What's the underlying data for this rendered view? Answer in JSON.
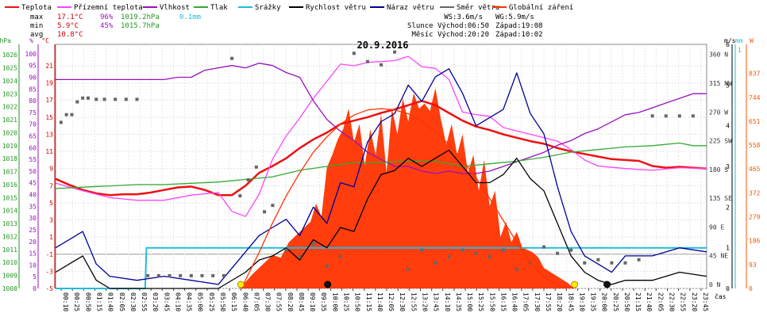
{
  "chart_data": {
    "type": "line",
    "title": "20.9.2016",
    "legend": [
      {
        "name": "Teplota",
        "color": "#ee1111"
      },
      {
        "name": "Přízemní teplota",
        "color": "#ff44ff"
      },
      {
        "name": "Vlhkost",
        "color": "#9911bb"
      },
      {
        "name": "Tlak",
        "color": "#33aa33"
      },
      {
        "name": "Srážky",
        "color": "#22bbdd"
      },
      {
        "name": "Rychlost větru",
        "color": "#000000"
      },
      {
        "name": "Náraz větru",
        "color": "#000099"
      },
      {
        "name": "Směr větru",
        "color": "#666666"
      },
      {
        "name": "Globální záření",
        "color": "#ff3300"
      }
    ],
    "stats": {
      "max": {
        "label": "max",
        "temp": "17.1°C",
        "hum": "96%",
        "press": "1019.2hPa",
        "rain": "0.1mm"
      },
      "min": {
        "label": "min",
        "temp": "5.9°C",
        "hum": "45%",
        "press": "1015.7hPa"
      },
      "avg": {
        "label": "avg",
        "temp": "10.8°C"
      }
    },
    "info": {
      "ws": "WS:3.6m/s",
      "wg": "WG:5.9m/s",
      "sun": "Slunce Východ:06:50",
      "sun_set": "Západ:19:08",
      "moon": "Měsíc Východ:20:20",
      "moon_set": "Západ:10:02"
    },
    "axes": {
      "hpa": {
        "label": "hPa",
        "ticks": [
          1008,
          1009,
          1010,
          1011,
          1012,
          1013,
          1014,
          1015,
          1016,
          1017,
          1018,
          1019,
          1020,
          1021,
          1022,
          1023,
          1024,
          1025,
          1026
        ],
        "range": [
          1008,
          1026.8
        ]
      },
      "pct": {
        "label": "%",
        "ticks": [
          0,
          5,
          10,
          15,
          20,
          25,
          30,
          35,
          40,
          45,
          50,
          55,
          60,
          65,
          70,
          75,
          80,
          85,
          90,
          95,
          100
        ],
        "range": [
          0,
          104
        ]
      },
      "temp": {
        "label": "°C",
        "ticks": [
          -5,
          -3,
          -1,
          1,
          3,
          5,
          7,
          9,
          11,
          13,
          15,
          17,
          19,
          21
        ],
        "range": [
          -5,
          23.5
        ]
      },
      "dir": {
        "label": "m/s",
        "ticks": [
          "0 N",
          "45 NE",
          "90 E",
          "135 SE",
          "180 S",
          "225 SW",
          "270 W",
          "315 NW",
          "360 N"
        ],
        "range": [
          0,
          382
        ]
      },
      "wind": {
        "label": "mm",
        "ticks": [
          0,
          1,
          2,
          3,
          4,
          5,
          6
        ],
        "top_label": "1",
        "range": [
          0,
          6
        ]
      },
      "rad": {
        "label": "W",
        "ticks": [
          0,
          93,
          186,
          279,
          372,
          465,
          558,
          651,
          744,
          837
        ],
        "range": [
          0,
          950
        ]
      }
    },
    "x_labels": [
      "00:10",
      "00:25",
      "00:50",
      "01:15",
      "01:40",
      "02:05",
      "02:30",
      "02:55",
      "03:20",
      "03:45",
      "04:10",
      "04:35",
      "05:00",
      "05:25",
      "05:50",
      "06:15",
      "06:40",
      "07:05",
      "07:30",
      "07:55",
      "08:20",
      "08:45",
      "09:10",
      "09:35",
      "10:00",
      "10:25",
      "10:50",
      "11:15",
      "11:40",
      "12:05",
      "12:30",
      "12:55",
      "13:20",
      "13:45",
      "14:10",
      "14:35",
      "15:00",
      "15:25",
      "15:50",
      "16:15",
      "16:40",
      "17:05",
      "17:30",
      "17:55",
      "18:20",
      "18:45",
      "19:10",
      "19:35",
      "20:00",
      "20:25",
      "20:50",
      "21:15",
      "21:40",
      "22:05",
      "22:30",
      "22:55",
      "23:20",
      "23:45"
    ],
    "x_unit": "čas",
    "x_range_hours": [
      0.0,
      24.0
    ],
    "series": [
      {
        "name": "Teplota",
        "axis": "temp",
        "color": "#ee1111",
        "x": [
          0,
          0.5,
          1,
          1.5,
          2,
          2.5,
          3,
          3.5,
          4,
          4.5,
          5,
          5.5,
          6,
          6.5,
          7,
          7.5,
          8,
          8.5,
          9,
          9.5,
          10,
          10.5,
          11,
          11.5,
          12,
          12.5,
          13,
          13.5,
          14,
          14.5,
          15,
          15.5,
          16,
          16.5,
          17,
          17.5,
          18,
          18.5,
          19,
          19.5,
          20,
          20.5,
          21,
          21.5,
          22,
          22.5,
          23,
          23.5,
          24
        ],
        "values": [
          7.8,
          7.1,
          6.5,
          6.1,
          5.9,
          6.0,
          6.0,
          6.2,
          6.5,
          6.8,
          6.9,
          6.5,
          5.9,
          5.9,
          7.0,
          8.5,
          9.3,
          10.2,
          11.4,
          12.4,
          13.2,
          14.2,
          14.6,
          15.0,
          15.5,
          15.9,
          16.4,
          16.9,
          16.4,
          15.5,
          14.6,
          13.9,
          13.5,
          13.0,
          12.6,
          12.2,
          11.9,
          11.4,
          11.0,
          10.7,
          10.4,
          10.1,
          10.0,
          9.9,
          9.3,
          9.1,
          9.2,
          9.1,
          9.0
        ]
      },
      {
        "name": "Přízemní teplota",
        "axis": "temp",
        "color": "#ff44ff",
        "x": [
          0,
          1,
          2,
          3,
          4,
          5,
          6,
          6.5,
          7,
          7.5,
          8,
          8.5,
          9,
          9.5,
          10,
          10.5,
          11,
          11.5,
          12,
          12.5,
          13,
          13.5,
          14,
          14.5,
          15,
          15.5,
          16,
          16.5,
          17,
          17.5,
          18,
          18.5,
          19,
          19.5,
          20,
          21,
          22,
          23,
          24
        ],
        "values": [
          7.3,
          6.4,
          5.6,
          5.3,
          5.3,
          5.9,
          6.2,
          4.0,
          3.4,
          6.0,
          10.1,
          12.8,
          14.9,
          17.2,
          19.2,
          21.2,
          21.0,
          21.4,
          21.5,
          21.6,
          22.1,
          20.9,
          20.7,
          19.4,
          15.6,
          15.3,
          15.1,
          13.8,
          13.4,
          13.0,
          12.6,
          12.2,
          11.2,
          10.0,
          9.3,
          9.0,
          8.8,
          9.1,
          9.0
        ]
      },
      {
        "name": "Vlhkost",
        "axis": "pct",
        "color": "#9911bb",
        "x": [
          0,
          1,
          2,
          3,
          3.5,
          4,
          4.5,
          5,
          5.5,
          6,
          6.5,
          7,
          7.5,
          8,
          8.5,
          9,
          9.5,
          10,
          10.5,
          11,
          11.5,
          12,
          12.5,
          13,
          13.5,
          14,
          14.5,
          15,
          15.5,
          16,
          16.5,
          17,
          17.5,
          18,
          18.5,
          19,
          19.5,
          20,
          20.5,
          21,
          21.5,
          22,
          22.5,
          23,
          23.5,
          24
        ],
        "values": [
          89,
          89,
          89,
          89,
          89,
          89,
          90,
          90,
          93,
          94,
          95,
          94,
          96,
          95,
          92,
          90,
          80,
          72,
          67,
          63,
          58,
          55,
          52,
          52,
          50,
          49,
          50,
          49,
          49,
          50,
          52,
          54,
          56,
          58,
          61,
          63,
          66,
          68,
          71,
          74,
          75,
          77,
          79,
          81,
          83,
          83
        ]
      },
      {
        "name": "Tlak",
        "axis": "hpa",
        "color": "#33aa33",
        "x": [
          0,
          1,
          2,
          3,
          4,
          5,
          6,
          7,
          8,
          9,
          10,
          11,
          12,
          13,
          14,
          15,
          16,
          17,
          18,
          19,
          20,
          21,
          22,
          23,
          23.5,
          24
        ],
        "values": [
          1015.7,
          1015.8,
          1015.9,
          1016.0,
          1016.0,
          1016.1,
          1016.2,
          1016.4,
          1016.6,
          1017.1,
          1017.4,
          1017.7,
          1017.7,
          1017.8,
          1017.8,
          1017.4,
          1017.6,
          1017.8,
          1018.1,
          1018.5,
          1018.7,
          1018.9,
          1019.0,
          1019.2,
          1019.0,
          1019.0
        ]
      },
      {
        "name": "Srážky",
        "axis": "wind",
        "color": "#22bbdd",
        "x": [
          0,
          3.3,
          3.35,
          24
        ],
        "values": [
          0,
          0,
          1,
          1
        ]
      },
      {
        "name": "Rychlost větru",
        "axis": "wind",
        "color": "#000000",
        "x": [
          0,
          0.5,
          1,
          1.5,
          2,
          3,
          4,
          5,
          6,
          7,
          7.5,
          8,
          8.5,
          9,
          9.5,
          10,
          10.5,
          11,
          11.5,
          12,
          12.5,
          13,
          13.5,
          14,
          14.5,
          15,
          15.5,
          16,
          16.5,
          17,
          17.5,
          18,
          18.5,
          19,
          19.5,
          20,
          20.5,
          21,
          22,
          23,
          24
        ],
        "values": [
          0.4,
          0.6,
          0.8,
          0.2,
          0,
          0,
          0,
          0,
          0,
          0.4,
          0.7,
          0.8,
          1.0,
          0.7,
          1.2,
          1.0,
          1.5,
          1.4,
          2.2,
          2.8,
          2.9,
          3.2,
          3.0,
          3.2,
          3.4,
          3.0,
          2.6,
          2.6,
          2.8,
          3.2,
          2.7,
          2.4,
          1.6,
          0.8,
          0.4,
          0.2,
          0.1,
          0.2,
          0.2,
          0.4,
          0.3
        ]
      },
      {
        "name": "Náraz větru",
        "axis": "wind",
        "color": "#000099",
        "x": [
          0,
          0.5,
          1,
          1.5,
          2,
          3,
          4,
          5,
          6,
          7,
          7.5,
          8,
          8.5,
          9,
          9.5,
          10,
          10.5,
          11,
          11.5,
          12,
          12.5,
          13,
          13.5,
          14,
          14.5,
          15,
          15.5,
          16,
          16.5,
          17,
          17.5,
          18,
          18.5,
          19,
          19.5,
          20,
          20.5,
          21,
          22,
          23,
          24
        ],
        "values": [
          1.0,
          1.2,
          1.4,
          0.6,
          0.3,
          0.2,
          0.3,
          0.2,
          0.1,
          0.9,
          1.3,
          1.5,
          1.7,
          1.3,
          2.0,
          1.6,
          2.6,
          2.5,
          3.6,
          4.1,
          4.3,
          5.0,
          4.6,
          5.2,
          5.4,
          4.8,
          4.0,
          4.2,
          4.4,
          5.3,
          4.3,
          3.8,
          2.5,
          1.4,
          0.8,
          0.6,
          0.4,
          0.8,
          0.8,
          1.0,
          0.9
        ]
      },
      {
        "name": "Směr větru",
        "axis": "dir",
        "type": "scatter",
        "color": "#666666",
        "x": [
          0.2,
          0.4,
          0.6,
          0.8,
          1.0,
          1.2,
          1.5,
          1.8,
          2.2,
          2.6,
          3.0,
          3.4,
          3.8,
          4.2,
          4.6,
          5.0,
          5.4,
          5.8,
          6.2,
          6.5,
          6.8,
          7.1,
          7.4,
          7.7,
          8.0,
          8.5,
          9.0,
          9.5,
          10.0,
          10.5,
          11.0,
          11.5,
          12.0,
          12.5,
          13.0,
          13.5,
          14.0,
          14.5,
          15.0,
          15.5,
          16.0,
          16.5,
          17.0,
          17.5,
          18.0,
          18.5,
          19.0,
          19.5,
          20.0,
          20.5,
          21.0,
          21.5,
          22.0,
          22.5,
          23.0,
          23.5
        ],
        "values": [
          260,
          272,
          272,
          292,
          298,
          298,
          296,
          296,
          296,
          296,
          296,
          20,
          20,
          20,
          20,
          20,
          20,
          20,
          20,
          360,
          145,
          170,
          190,
          120,
          130,
          60,
          50,
          70,
          35,
          50,
          368,
          355,
          350,
          370,
          30,
          60,
          40,
          50,
          60,
          55,
          50,
          60,
          30,
          40,
          65,
          55,
          60,
          40,
          45,
          40,
          40,
          45,
          270,
          270,
          270,
          270
        ]
      },
      {
        "name": "Globální záření",
        "axis": "rad",
        "type": "area",
        "color": "#ff3300",
        "x": [
          0,
          6.8,
          7.0,
          7.3,
          7.6,
          8.0,
          8.3,
          8.6,
          9.0,
          9.4,
          9.6,
          9.8,
          10.0,
          10.2,
          10.4,
          10.6,
          10.8,
          11.0,
          11.2,
          11.4,
          11.6,
          11.8,
          12.0,
          12.2,
          12.4,
          12.6,
          12.8,
          13.0,
          13.2,
          13.4,
          13.6,
          13.8,
          14.0,
          14.2,
          14.4,
          14.6,
          14.8,
          15.0,
          15.2,
          15.4,
          15.6,
          15.8,
          16.0,
          16.2,
          16.4,
          16.6,
          16.8,
          17.0,
          17.2,
          17.4,
          17.6,
          17.8,
          18.0,
          18.3,
          18.6,
          18.9,
          19.1,
          24
        ],
        "values": [
          0,
          0,
          25,
          60,
          90,
          130,
          120,
          180,
          220,
          260,
          330,
          280,
          470,
          520,
          580,
          620,
          700,
          570,
          640,
          480,
          620,
          520,
          680,
          450,
          700,
          600,
          740,
          650,
          760,
          700,
          720,
          690,
          780,
          660,
          560,
          640,
          520,
          600,
          450,
          520,
          380,
          500,
          320,
          380,
          200,
          260,
          180,
          220,
          160,
          150,
          140,
          120,
          80,
          60,
          40,
          20,
          0,
          0
        ]
      },
      {
        "name": "Globální záření (teorie)",
        "axis": "rad",
        "type": "line",
        "color": "#ff3300",
        "x": [
          6.85,
          7.5,
          8,
          8.5,
          9,
          9.5,
          10,
          10.5,
          11,
          11.5,
          12,
          12.5,
          13,
          13.5,
          14,
          14.5,
          15,
          15.5,
          16,
          16.5,
          17,
          17.5,
          18,
          18.5,
          19.1
        ],
        "values": [
          0,
          140,
          255,
          360,
          450,
          530,
          590,
          640,
          675,
          695,
          700,
          695,
          680,
          650,
          610,
          560,
          500,
          430,
          350,
          265,
          180,
          100,
          45,
          12,
          0
        ]
      }
    ],
    "markers": {
      "sun": [
        {
          "x": 6.83,
          "color": "#ffee00"
        },
        {
          "x": 19.13,
          "color": "#ffee00"
        }
      ],
      "moon": [
        {
          "x": 10.03,
          "color": "#111111"
        },
        {
          "x": 20.33,
          "color": "#111111"
        }
      ]
    }
  }
}
